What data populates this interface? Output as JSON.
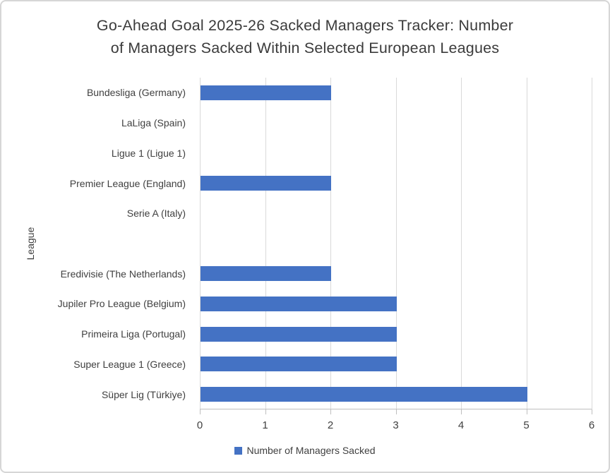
{
  "chart_data": {
    "type": "bar",
    "orientation": "horizontal",
    "title": "Go-Ahead Goal 2025-26 Sacked Managers Tracker: Number of Managers Sacked Within Selected European Leagues",
    "title_lines": [
      "Go-Ahead Goal 2025-26 Sacked Managers Tracker: Number",
      "of Managers Sacked Within Selected European Leagues"
    ],
    "categories": [
      "Bundesliga (Germany)",
      "LaLiga (Spain)",
      "Ligue 1 (Ligue 1)",
      "Premier League (England)",
      "Serie A (Italy)",
      "",
      "Eredivisie (The Netherlands)",
      "Jupiler Pro League (Belgium)",
      "Primeira Liga (Portugal)",
      "Super League 1 (Greece)",
      "Süper Lig (Türkiye)"
    ],
    "values": [
      2,
      0,
      0,
      2,
      0,
      0,
      2,
      3,
      3,
      3,
      5
    ],
    "series_name": "Number of Managers Sacked",
    "xlabel": "",
    "ylabel": "League",
    "xlim": [
      0,
      6
    ],
    "x_ticks": [
      "0",
      "1",
      "2",
      "3",
      "4",
      "5",
      "6"
    ],
    "grid": true,
    "legend_position": "bottom",
    "bar_color": "#4472C4",
    "gridline_color": "#d9d9d9",
    "axis_color": "#bfbfbf",
    "text_color": "#404040"
  }
}
